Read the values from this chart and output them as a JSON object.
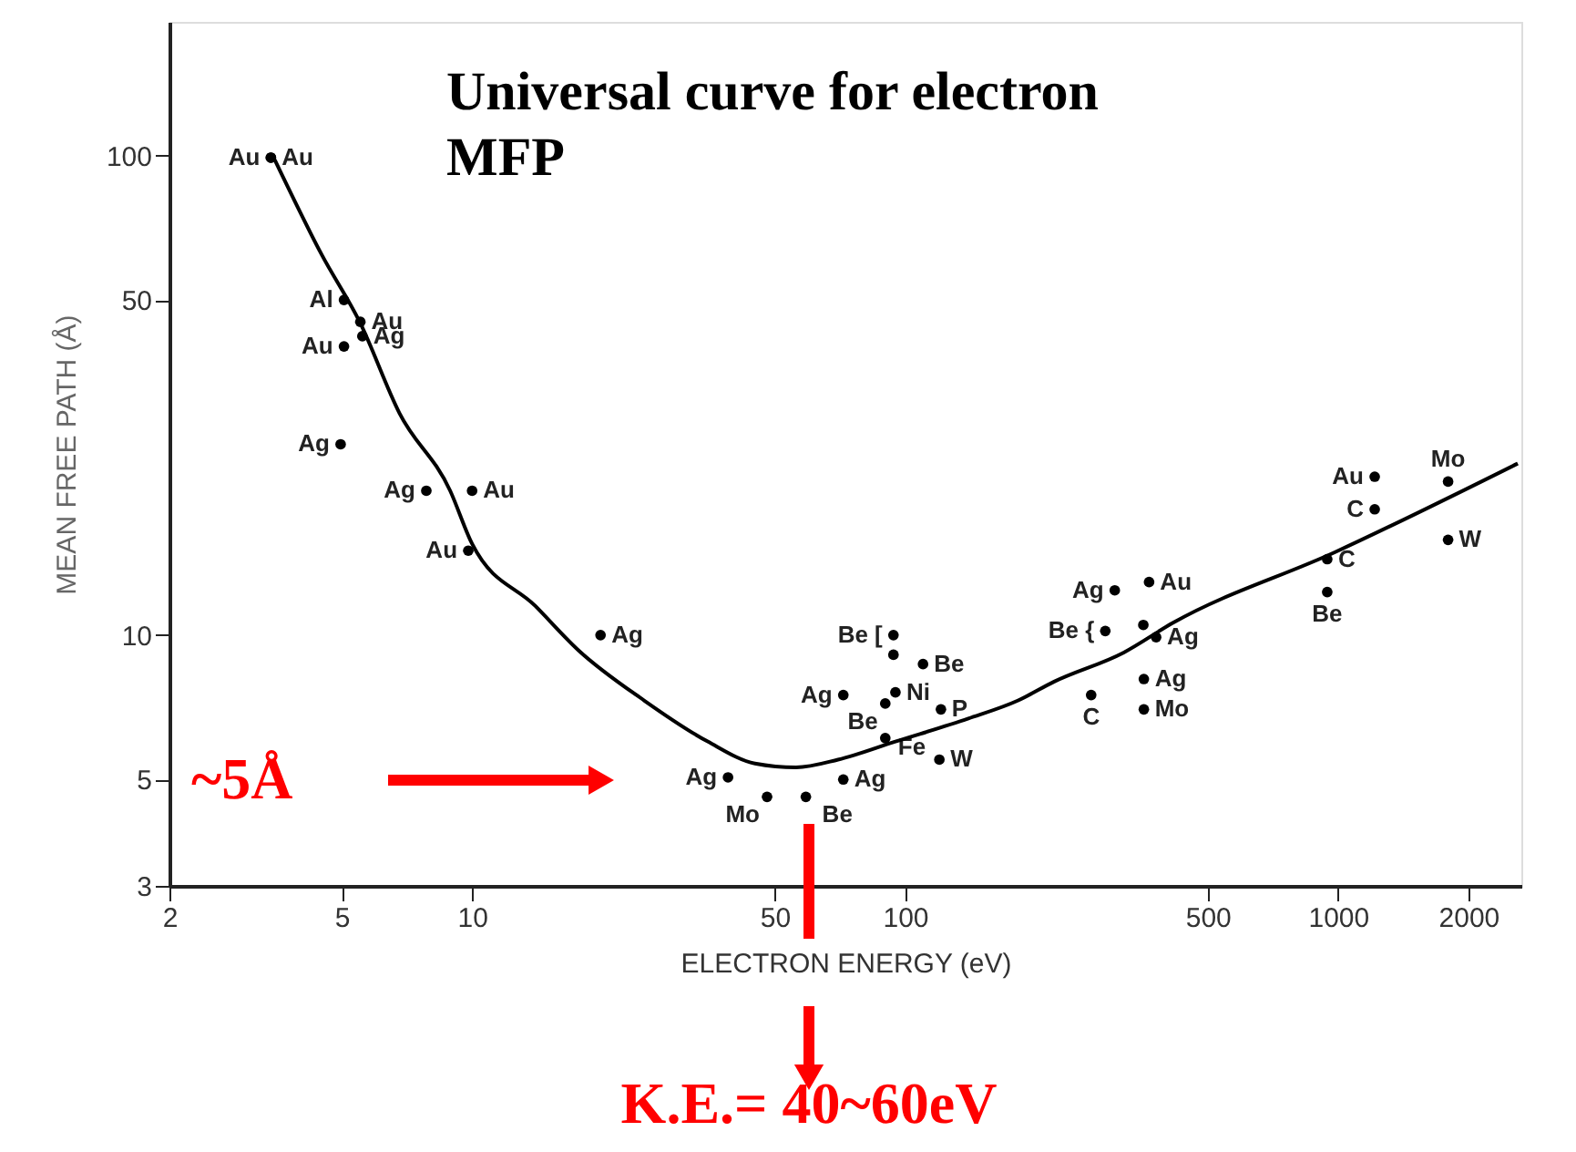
{
  "chart_data": {
    "type": "scatter",
    "title": "Universal curve for electron MFP",
    "xlabel": "ELECTRON ENERGY (eV)",
    "ylabel": "MEAN FREE PATH (Å)",
    "log": "xy",
    "grid": false,
    "xlim": [
      2,
      2650
    ],
    "ylim": [
      3,
      190
    ],
    "xticks": [
      2,
      5,
      10,
      50,
      100,
      500,
      1000,
      2000
    ],
    "yticks": [
      3,
      5,
      10,
      50,
      100
    ],
    "series": [
      {
        "color": "#000000",
        "marker": "circle",
        "x": [
          3.43,
          3.43,
          5.06,
          5.52,
          5.06,
          5.58,
          4.97,
          7.84,
          10,
          9.8,
          19.8,
          39,
          48,
          59,
          72,
          94,
          94,
          110,
          72,
          90,
          95,
          90,
          121,
          120,
          305,
          366,
          290,
          355,
          380,
          356,
          356,
          269,
          1215,
          1215,
          944,
          944,
          1795,
          1795
        ],
        "values": [
          99,
          99,
          50,
          45,
          40,
          42,
          25,
          20,
          20,
          15,
          10,
          5.05,
          4.6,
          4.6,
          5.0,
          10,
          9.1,
          8.7,
          7.5,
          7.2,
          7.6,
          6.1,
          7.0,
          5.5,
          12.4,
          12.9,
          10.2,
          10.5,
          9.9,
          8.1,
          7.0,
          7.5,
          21.4,
          18.3,
          14.4,
          12.3,
          20.9,
          15.8
        ],
        "value_labels": [
          "Au",
          "Au",
          "Al",
          "Au",
          "Au",
          "Ag",
          "Ag",
          "Ag",
          "Au",
          "Au",
          "Ag",
          "Ag",
          "Mo",
          "Be",
          "Ag",
          "Be [",
          null,
          "Be",
          "Ag",
          "Be",
          "Ni",
          "Fe",
          "P",
          "W",
          "Ag",
          "Au",
          "Be {",
          null,
          "Ag",
          "Ag",
          "Mo",
          "C",
          "Au",
          "C",
          "C",
          "Be",
          "Mo",
          "W"
        ]
      },
      {
        "type": "line",
        "color": "#000000",
        "x": [
          3.5,
          4.5,
          5.5,
          6.8,
          8.9,
          10,
          14,
          17.6,
          25,
          35,
          45,
          56,
          70,
          95,
          140,
          182,
          221,
          320,
          415,
          985,
          2600
        ],
        "values": [
          98,
          62,
          45,
          29,
          20,
          15.5,
          11.5,
          9.3,
          7.3,
          6.0,
          5.4,
          5.3,
          5.5,
          6.0,
          6.7,
          7.3,
          8.0,
          9.2,
          10.6,
          14.9,
          22.8
        ]
      }
    ],
    "annotations": [
      "~5Å",
      "K.E.= 40~60eV"
    ]
  }
}
